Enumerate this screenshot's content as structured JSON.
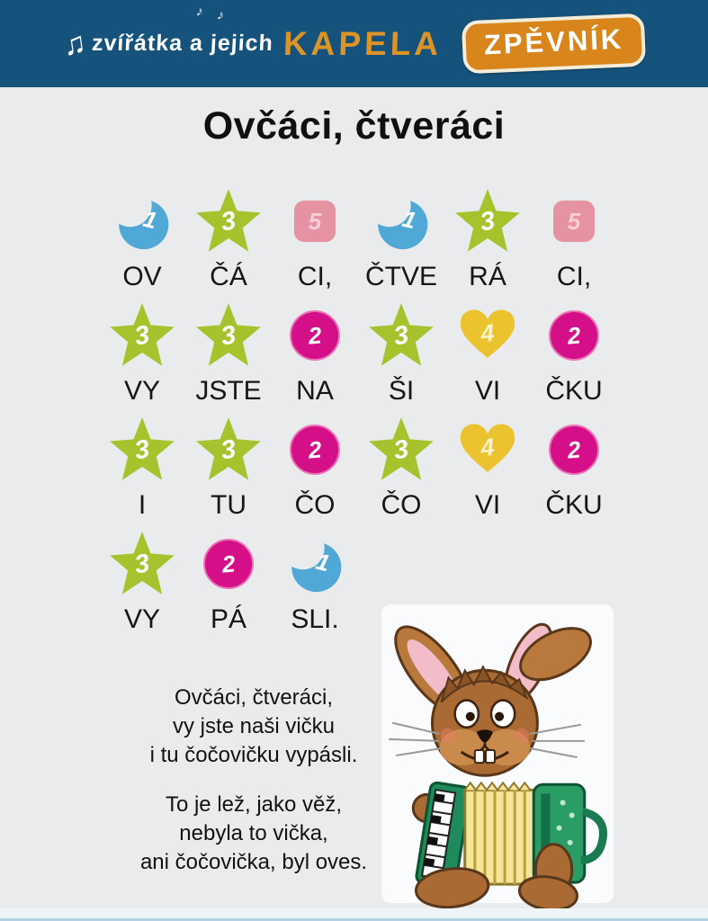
{
  "header": {
    "note_icon": "♫",
    "small_notes": "♪ ♪",
    "logo_prefix": "zvířátka a jejich",
    "logo_brand": "KAPELA",
    "badge_label": "ZPĚVNÍK"
  },
  "title": "Ovčáci, čtveráci",
  "notation": {
    "symbol_colors": {
      "moon": "#4fa8d5",
      "star": "#a6c32d",
      "square": "#e593a2",
      "circle": "#d50f87",
      "heart": "#ebc32f"
    },
    "rows": [
      {
        "cells": [
          {
            "symbol": "moon",
            "number": "1",
            "syllable": "OV"
          },
          {
            "symbol": "star",
            "number": "3",
            "syllable": "ČÁ"
          },
          {
            "symbol": "square",
            "number": "5",
            "syllable": "CI,"
          },
          {
            "symbol": "moon",
            "number": "1",
            "syllable": "ČTVE"
          },
          {
            "symbol": "star",
            "number": "3",
            "syllable": "RÁ"
          },
          {
            "symbol": "square",
            "number": "5",
            "syllable": "CI,"
          }
        ]
      },
      {
        "cells": [
          {
            "symbol": "star",
            "number": "3",
            "syllable": "VY"
          },
          {
            "symbol": "star",
            "number": "3",
            "syllable": "JSTE"
          },
          {
            "symbol": "circle",
            "number": "2",
            "syllable": "NA"
          },
          {
            "symbol": "star",
            "number": "3",
            "syllable": "ŠI"
          },
          {
            "symbol": "heart",
            "number": "4",
            "syllable": "VI"
          },
          {
            "symbol": "circle",
            "number": "2",
            "syllable": "ČKU"
          }
        ]
      },
      {
        "cells": [
          {
            "symbol": "star",
            "number": "3",
            "syllable": "I"
          },
          {
            "symbol": "star",
            "number": "3",
            "syllable": "TU"
          },
          {
            "symbol": "circle",
            "number": "2",
            "syllable": "ČO"
          },
          {
            "symbol": "star",
            "number": "3",
            "syllable": "ČO"
          },
          {
            "symbol": "heart",
            "number": "4",
            "syllable": "VI"
          },
          {
            "symbol": "circle",
            "number": "2",
            "syllable": "ČKU"
          }
        ]
      },
      {
        "cells": [
          {
            "symbol": "star",
            "number": "3",
            "syllable": "VY"
          },
          {
            "symbol": "circle",
            "number": "2",
            "syllable": "PÁ"
          },
          {
            "symbol": "moon",
            "number": "1",
            "syllable": "SLI."
          }
        ]
      }
    ]
  },
  "lyrics": {
    "verses": [
      [
        "Ovčáci, čtveráci,",
        "vy jste naši vičku",
        "i tu čočovičku vypásli."
      ],
      [
        "To je lež, jako věž,",
        "nebyla to vička,",
        "ani čočovička, byl oves."
      ]
    ]
  },
  "colors": {
    "header_bg": "#15537d",
    "page_bg": "#e9ebed",
    "accent_orange": "#d8861c",
    "footer_line": "#b3cfe1"
  }
}
